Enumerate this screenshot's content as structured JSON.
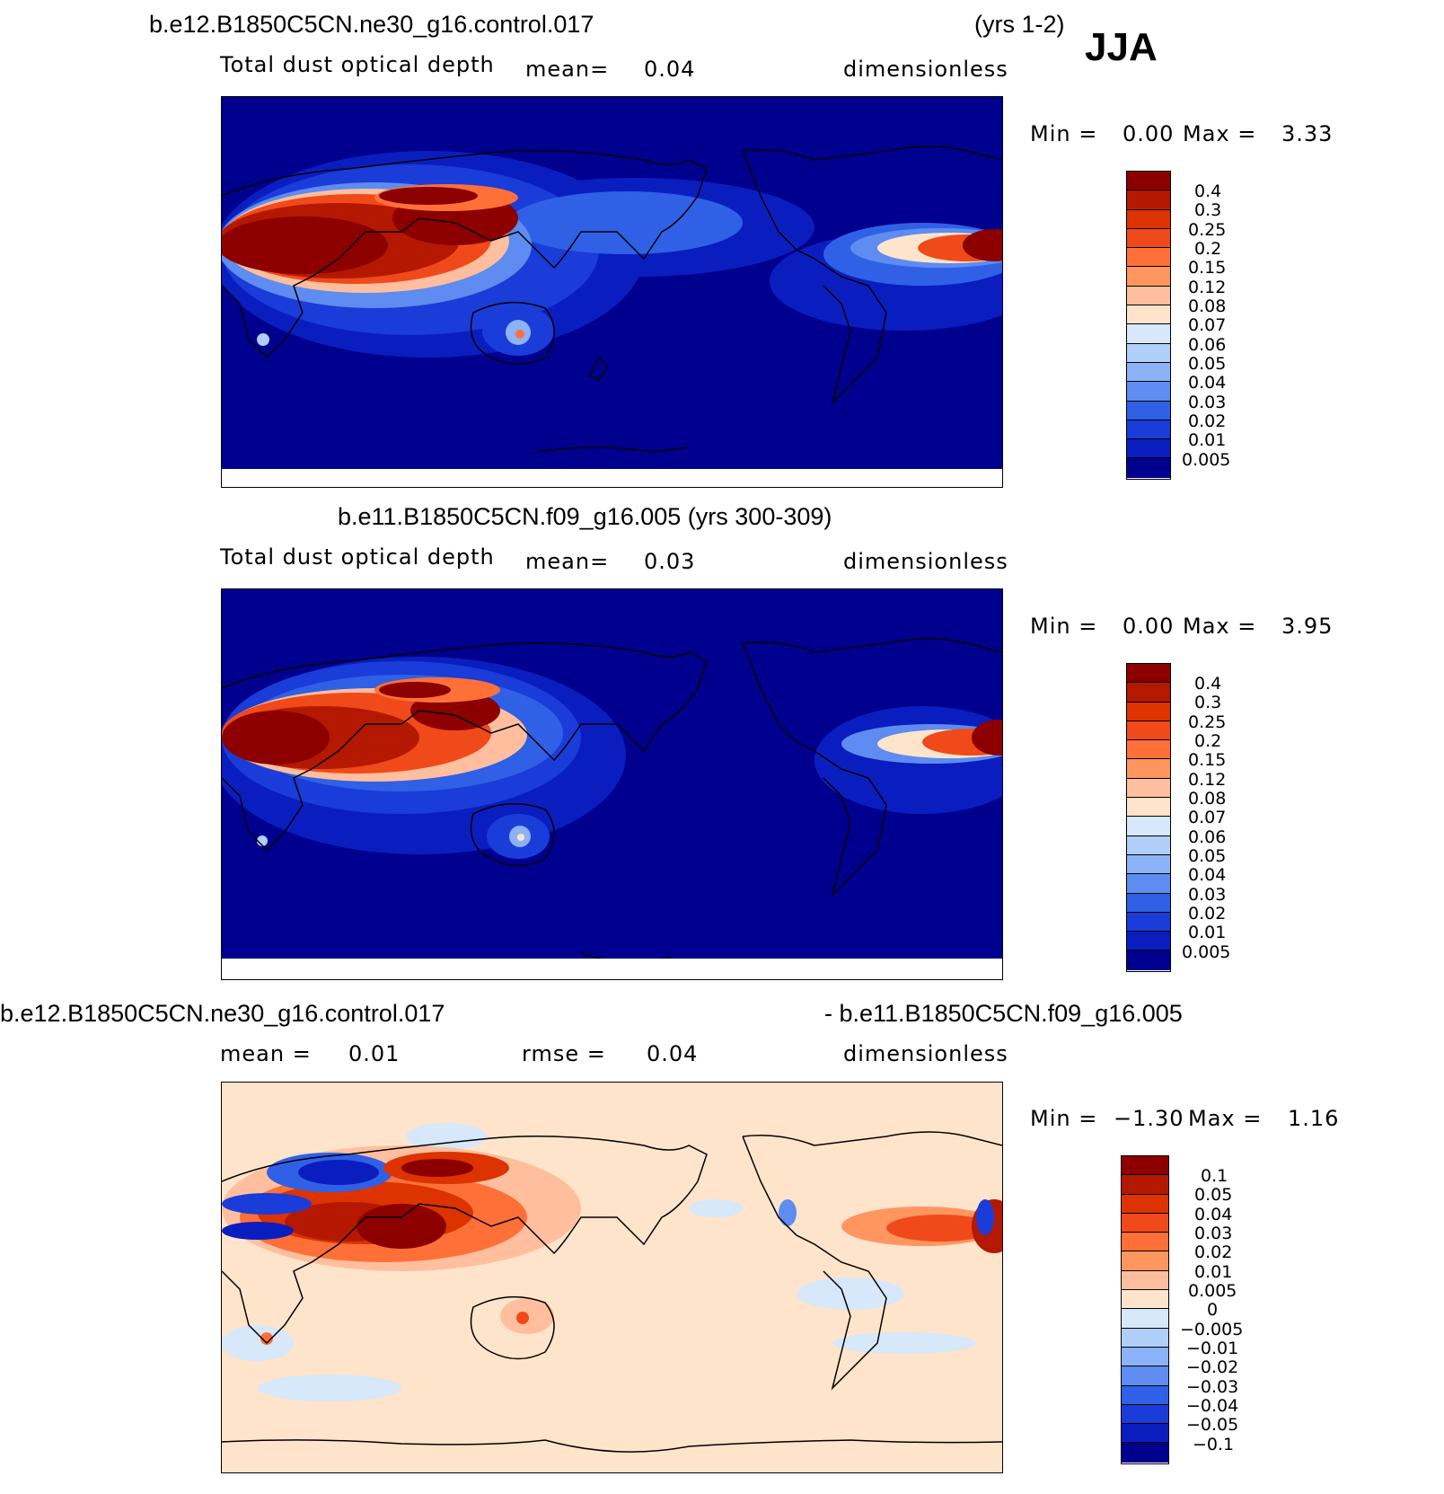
{
  "season": "JJA",
  "panels": [
    {
      "title_left": "b.e12.B1850C5CN.ne30_g16.control.017",
      "title_right": "(yrs 1-2)",
      "variable": "Total dust optical depth",
      "stat1_label": "mean=",
      "stat1_value": "0.04",
      "units": "dimensionless",
      "min_label": "Min =",
      "min_value": "0.00",
      "max_label": "Max =",
      "max_value": "3.33"
    },
    {
      "title_center": "b.e11.B1850C5CN.f09_g16.005 (yrs 300-309)",
      "variable": "Total dust optical depth",
      "stat1_label": "mean=",
      "stat1_value": "0.03",
      "units": "dimensionless",
      "min_label": "Min =",
      "min_value": "0.00",
      "max_label": "Max =",
      "max_value": "3.95"
    },
    {
      "title_left": "b.e12.B1850C5CN.ne30_g16.control.017",
      "title_right": "- b.e11.B1850C5CN.f09_g16.005",
      "stat1_label": "mean =",
      "stat1_value": "0.01",
      "stat2_label": "rmse =",
      "stat2_value": "0.04",
      "units": "dimensionless",
      "min_label": "Min =",
      "min_value": "−1.30",
      "max_label": "Max =",
      "max_value": "1.16"
    }
  ],
  "colorbar_abs": {
    "labels": [
      "0.4",
      "0.3",
      "0.25",
      "0.2",
      "0.15",
      "0.12",
      "0.08",
      "0.07",
      "0.06",
      "0.05",
      "0.04",
      "0.03",
      "0.02",
      "0.01",
      "0.005"
    ],
    "colors": [
      "#8c0000",
      "#b41800",
      "#dc3300",
      "#f04a1a",
      "#ff7038",
      "#ff9660",
      "#ffbf9e",
      "#ffe4cc",
      "#d6e8fa",
      "#b0cff8",
      "#8cb2f8",
      "#5e8cf0",
      "#3060e6",
      "#1a3cd8",
      "#0a1ec0",
      "#00008e"
    ]
  },
  "colorbar_diff": {
    "labels": [
      "0.1",
      "0.05",
      "0.04",
      "0.03",
      "0.02",
      "0.01",
      "0.005",
      "0",
      "−0.005",
      "−0.01",
      "−0.02",
      "−0.03",
      "−0.04",
      "−0.05",
      "−0.1"
    ],
    "colors": [
      "#8c0000",
      "#b41800",
      "#dc3300",
      "#f04a1a",
      "#ff7038",
      "#ff9660",
      "#ffbf9e",
      "#ffe4cc",
      "#d6e8fa",
      "#b0cff8",
      "#8cb2f8",
      "#5e8cf0",
      "#3060e6",
      "#1a3cd8",
      "#0a1ec0",
      "#00008e"
    ]
  }
}
